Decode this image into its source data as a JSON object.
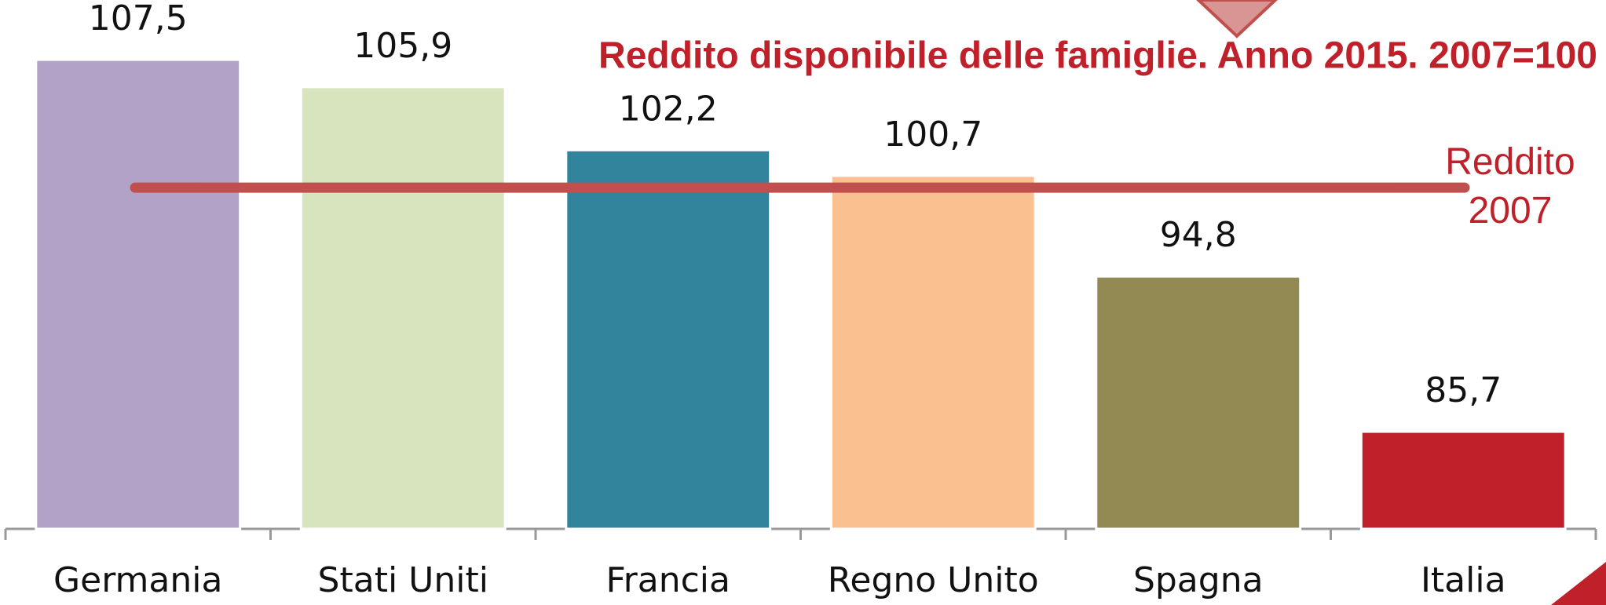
{
  "chart_data": {
    "type": "bar",
    "title": "Reddito disponibile delle famiglie. Anno 2015. 2007=100",
    "categories": [
      "Germania",
      "Stati Uniti",
      "Francia",
      "Regno Unito",
      "Spagna",
      "Italia"
    ],
    "values": [
      107.5,
      105.9,
      102.2,
      100.7,
      94.8,
      85.7
    ],
    "value_labels": [
      "107,5",
      "105,9",
      "102,2",
      "100,7",
      "94,8",
      "85,7"
    ],
    "colors": [
      "#b3a2c8",
      "#d7e4bd",
      "#31849b",
      "#fac090",
      "#938953",
      "#c0202a"
    ],
    "ylim": [
      80,
      111
    ],
    "reference_line": {
      "value": 100,
      "label": [
        "Reddito",
        "2007"
      ],
      "color": "#c0504d"
    }
  }
}
